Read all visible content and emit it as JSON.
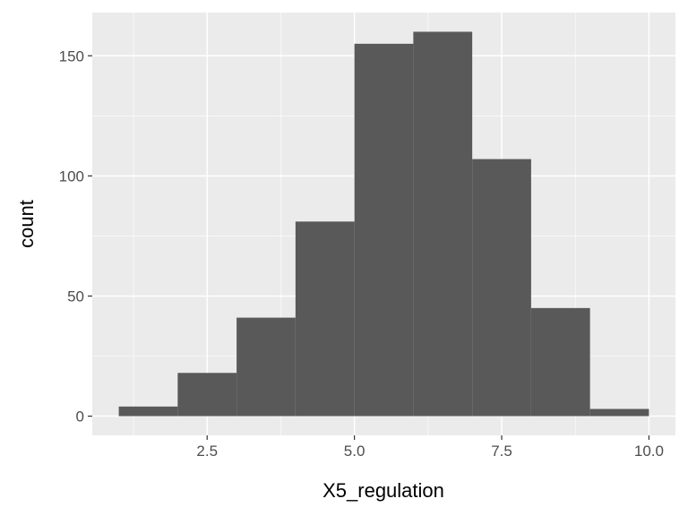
{
  "chart_data": {
    "type": "bar",
    "subtype": "histogram",
    "title": "",
    "xlabel": "X5_regulation",
    "ylabel": "count",
    "bins": [
      {
        "x0": 1,
        "x1": 2,
        "count": 4
      },
      {
        "x0": 2,
        "x1": 3,
        "count": 18
      },
      {
        "x0": 3,
        "x1": 4,
        "count": 41
      },
      {
        "x0": 4,
        "x1": 5,
        "count": 81
      },
      {
        "x0": 5,
        "x1": 6,
        "count": 155
      },
      {
        "x0": 6,
        "x1": 7,
        "count": 160
      },
      {
        "x0": 7,
        "x1": 8,
        "count": 107
      },
      {
        "x0": 8,
        "x1": 9,
        "count": 45
      },
      {
        "x0": 9,
        "x1": 10,
        "count": 3
      }
    ],
    "xlim": [
      0.55,
      10.45
    ],
    "ylim": [
      -8,
      168
    ],
    "xticks": [
      2.5,
      5.0,
      7.5,
      10.0
    ],
    "xtick_labels": [
      "2.5",
      "5.0",
      "7.5",
      "10.0"
    ],
    "yticks": [
      0,
      50,
      100,
      150
    ],
    "ytick_labels": [
      "0",
      "50",
      "100",
      "150"
    ],
    "grid": true,
    "colors": {
      "panel_background": "#ebebeb",
      "grid_major": "#ffffff",
      "bar_fill": "#595959",
      "tick_text": "#4d4d4d",
      "tick_mark": "#333333",
      "axis_title": "#000000"
    }
  }
}
